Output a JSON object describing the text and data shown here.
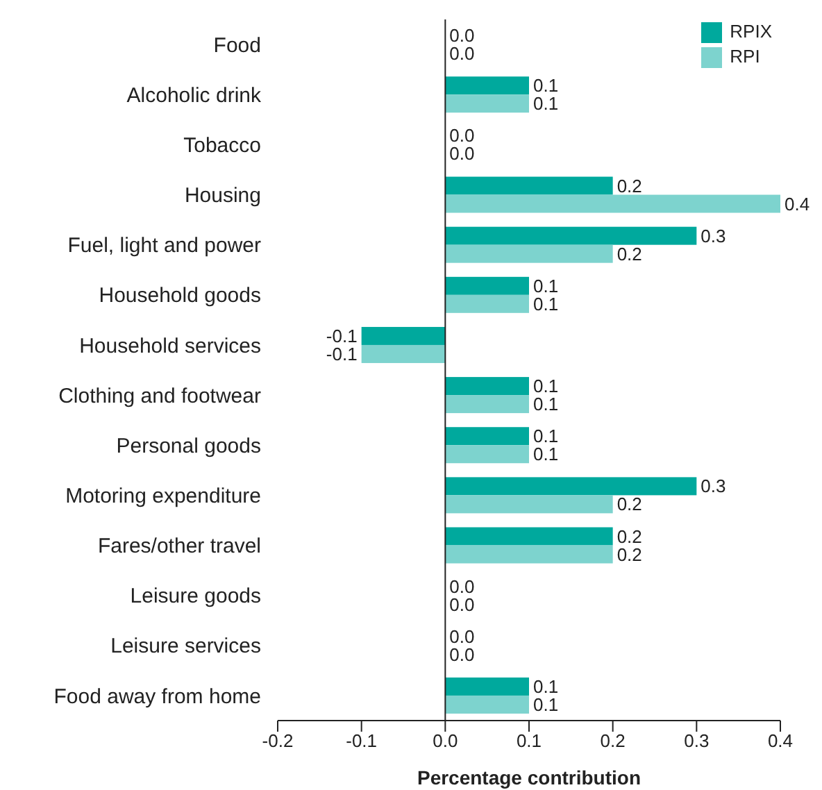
{
  "chart_data": {
    "type": "bar",
    "orientation": "horizontal",
    "xlabel": "Percentage contribution",
    "categories": [
      "Food",
      "Alcoholic drink",
      "Tobacco",
      "Housing",
      "Fuel, light and power",
      "Household goods",
      "Household services",
      "Clothing and footwear",
      "Personal goods",
      "Motoring expenditure",
      "Fares/other travel",
      "Leisure goods",
      "Leisure services",
      "Food away from home"
    ],
    "series": [
      {
        "name": "RPIX",
        "color": "#00a99d",
        "values": [
          0,
          0.1,
          0,
          0.2,
          0.3,
          0.1,
          -0.1,
          0.1,
          0.1,
          0.3,
          0.2,
          0,
          0,
          0.1
        ],
        "value_labels": [
          "0.0",
          "0.1",
          "0.0",
          "0.2",
          "0.3",
          "0.1",
          "-0.1",
          "0.1",
          "0.1",
          "0.3",
          "0.2",
          "0.0",
          "0.0",
          "0.1"
        ]
      },
      {
        "name": "RPI",
        "color": "#7dd3ce",
        "values": [
          0,
          0.1,
          0,
          0.4,
          0.2,
          0.1,
          -0.1,
          0.1,
          0.1,
          0.2,
          0.2,
          0,
          0,
          0.1
        ],
        "value_labels": [
          "0.0",
          "0.1",
          "0.0",
          "0.4",
          "0.2",
          "0.1",
          "-0.1",
          "0.1",
          "0.1",
          "0.2",
          "0.2",
          "0.0",
          "0.0",
          "0.1"
        ]
      }
    ],
    "xlim": [
      -0.2,
      0.4
    ],
    "xticks": [
      -0.2,
      -0.1,
      {
        "value": 0,
        "label": "0.0"
      },
      0.1,
      0.2,
      0.3,
      0.4
    ],
    "ref_lines": [
      {
        "axis": "x",
        "value": 0,
        "color": "#222222"
      }
    ],
    "grid": false,
    "legend": "top right"
  }
}
